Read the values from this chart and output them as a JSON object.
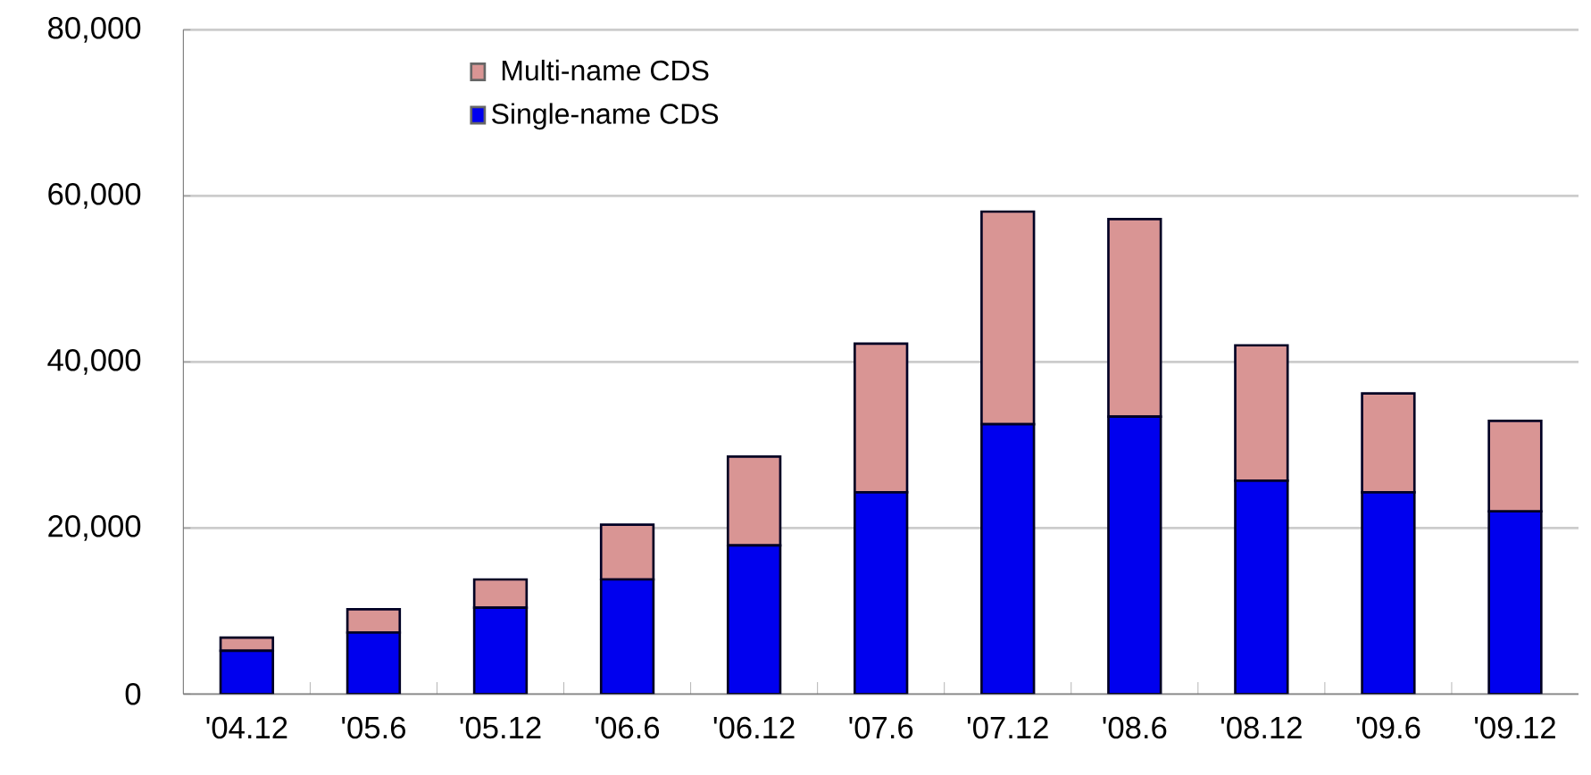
{
  "chart_data": {
    "type": "bar",
    "stacked": true,
    "categories": [
      "'04.12",
      "'05.6",
      "'05.12",
      "'06.6",
      "'06.12",
      "'07.6",
      "'07.12",
      "'08.6",
      "'08.12",
      "'09.6",
      "'09.12"
    ],
    "series": [
      {
        "name": "Single-name CDS",
        "color": "#0000ee",
        "values": [
          5200,
          7400,
          10400,
          13800,
          17900,
          24300,
          32500,
          33400,
          25700,
          24300,
          22000
        ]
      },
      {
        "name": "Multi-name CDS",
        "color": "#d99594",
        "values": [
          1600,
          2800,
          3400,
          6600,
          10700,
          17900,
          25600,
          23800,
          16300,
          11900,
          10900
        ]
      }
    ],
    "ylim": [
      0,
      80000
    ],
    "yticks": [
      {
        "value": 0,
        "label": "0"
      },
      {
        "value": 20000,
        "label": "20,000"
      },
      {
        "value": 40000,
        "label": "40,000"
      },
      {
        "value": 60000,
        "label": "60,000"
      },
      {
        "value": 80000,
        "label": "80,000"
      }
    ],
    "grid": "y",
    "legend": "top left"
  }
}
